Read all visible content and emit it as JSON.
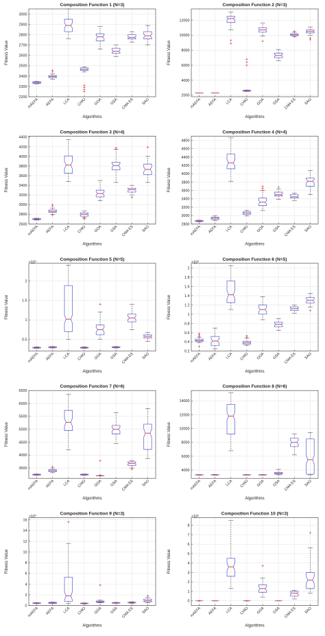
{
  "colors": {
    "box": "#6b6bd6",
    "median": "#e03030",
    "outlier": "#e03030",
    "whisker": "#555555",
    "grid": "#e6e6e6",
    "axis": "#333333"
  },
  "chart_data": [
    {
      "type": "box",
      "title": "Composition Function 1 (N=3)",
      "xlabel": "Algorithms",
      "ylabel": "Fitness Value",
      "categories": [
        "mAEFA",
        "AEFA",
        "LCA",
        "CHIO",
        "GOA",
        "GSA",
        "CMA ES",
        "SAO"
      ],
      "ylim": [
        2200,
        3050
      ],
      "yticks": [
        2200,
        2300,
        2400,
        2500,
        2600,
        2700,
        2800,
        2900,
        3000
      ],
      "multiplier": "",
      "boxes": [
        {
          "q1": 2330,
          "median": 2338,
          "q3": 2345,
          "lo": 2325,
          "hi": 2350,
          "outliers": []
        },
        {
          "q1": 2385,
          "median": 2395,
          "q3": 2405,
          "lo": 2370,
          "hi": 2420,
          "outliers": [
            2440,
            2455
          ]
        },
        {
          "q1": 2830,
          "median": 2890,
          "q3": 2950,
          "lo": 2760,
          "hi": 3050,
          "outliers": []
        },
        {
          "q1": 2455,
          "median": 2465,
          "q3": 2480,
          "lo": 2440,
          "hi": 2490,
          "outliers": [
            2250,
            2270,
            2290,
            2310
          ]
        },
        {
          "q1": 2740,
          "median": 2780,
          "q3": 2810,
          "lo": 2660,
          "hi": 2880,
          "outliers": []
        },
        {
          "q1": 2620,
          "median": 2640,
          "q3": 2670,
          "lo": 2590,
          "hi": 2700,
          "outliers": []
        },
        {
          "q1": 2760,
          "median": 2775,
          "q3": 2800,
          "lo": 2730,
          "hi": 2830,
          "outliers": []
        },
        {
          "q1": 2760,
          "median": 2790,
          "q3": 2830,
          "lo": 2700,
          "hi": 2890,
          "outliers": []
        }
      ]
    },
    {
      "type": "box",
      "title": "Composition Function 2 (N=3)",
      "xlabel": "Algorithms",
      "ylabel": "Fitness Value",
      "categories": [
        "mAEFA",
        "AEFA",
        "LCA",
        "CHIO",
        "GOA",
        "GSA",
        "CMA ES",
        "SAO"
      ],
      "ylim": [
        1800,
        13500
      ],
      "yticks": [
        2000,
        4000,
        6000,
        8000,
        10000,
        12000
      ],
      "multiplier": "",
      "boxes": [
        {
          "q1": 2290,
          "median": 2300,
          "q3": 2310,
          "lo": 2290,
          "hi": 2310,
          "outliers": []
        },
        {
          "q1": 2290,
          "median": 2300,
          "q3": 2310,
          "lo": 2290,
          "hi": 2310,
          "outliers": []
        },
        {
          "q1": 11700,
          "median": 12200,
          "q3": 12500,
          "lo": 10700,
          "hi": 13100,
          "outliers": [
            8900,
            9300
          ]
        },
        {
          "q1": 2550,
          "median": 2600,
          "q3": 2650,
          "lo": 2500,
          "hi": 2700,
          "outliers": [
            6000,
            6400,
            6800
          ]
        },
        {
          "q1": 10400,
          "median": 10700,
          "q3": 11000,
          "lo": 9900,
          "hi": 11600,
          "outliers": [
            9200
          ]
        },
        {
          "q1": 7000,
          "median": 7300,
          "q3": 7600,
          "lo": 6600,
          "hi": 8100,
          "outliers": []
        },
        {
          "q1": 9950,
          "median": 10050,
          "q3": 10200,
          "lo": 9800,
          "hi": 10400,
          "outliers": [
            9800,
            10500
          ]
        },
        {
          "q1": 10300,
          "median": 10500,
          "q3": 10700,
          "lo": 10000,
          "hi": 11100,
          "outliers": [
            9400,
            9600
          ]
        }
      ]
    },
    {
      "type": "box",
      "title": "Composition Function 3 (N=4)",
      "xlabel": "Algorithms",
      "ylabel": "Fitness Value",
      "categories": [
        "mAEFA",
        "AEFA",
        "LCA",
        "CHIO",
        "GOA",
        "GSA",
        "CMA ES",
        "SAO"
      ],
      "ylim": [
        2600,
        4420
      ],
      "yticks": [
        2600,
        2800,
        3000,
        3200,
        3400,
        3600,
        3800,
        4000,
        4200,
        4400
      ],
      "multiplier": "",
      "boxes": [
        {
          "q1": 2690,
          "median": 2700,
          "q3": 2710,
          "lo": 2680,
          "hi": 2720,
          "outliers": []
        },
        {
          "q1": 2840,
          "median": 2860,
          "q3": 2890,
          "lo": 2800,
          "hi": 2930,
          "outliers": [
            2780,
            2970,
            3000
          ]
        },
        {
          "q1": 3650,
          "median": 3820,
          "q3": 4010,
          "lo": 3480,
          "hi": 4350,
          "outliers": []
        },
        {
          "q1": 2760,
          "median": 2800,
          "q3": 2830,
          "lo": 2730,
          "hi": 2870,
          "outliers": [
            2700,
            2720
          ]
        },
        {
          "q1": 3160,
          "median": 3230,
          "q3": 3300,
          "lo": 3080,
          "hi": 3500,
          "outliers": []
        },
        {
          "q1": 3720,
          "median": 3810,
          "q3": 3880,
          "lo": 3460,
          "hi": 4150,
          "outliers": [
            4150,
            4180
          ]
        },
        {
          "q1": 3260,
          "median": 3310,
          "q3": 3340,
          "lo": 3200,
          "hi": 3400,
          "outliers": [
            3150
          ]
        },
        {
          "q1": 3620,
          "median": 3730,
          "q3": 3840,
          "lo": 3460,
          "hi": 4000,
          "outliers": [
            4190
          ]
        }
      ]
    },
    {
      "type": "box",
      "title": "Composition Function 4 (N=4)",
      "xlabel": "Algorithms",
      "ylabel": "Fitness Value",
      "categories": [
        "mAEFA",
        "AEFA",
        "LCA",
        "CHIO",
        "GOA",
        "GSA",
        "CMA ES",
        "SAO"
      ],
      "ylim": [
        2800,
        4900
      ],
      "yticks": [
        2800,
        3000,
        3200,
        3400,
        3600,
        3800,
        4000,
        4200,
        4400,
        4600,
        4800
      ],
      "multiplier": "",
      "boxes": [
        {
          "q1": 2860,
          "median": 2870,
          "q3": 2880,
          "lo": 2850,
          "hi": 2890,
          "outliers": []
        },
        {
          "q1": 2910,
          "median": 2940,
          "q3": 2960,
          "lo": 2880,
          "hi": 3000,
          "outliers": []
        },
        {
          "q1": 4120,
          "median": 4260,
          "q3": 4470,
          "lo": 3820,
          "hi": 4860,
          "outliers": []
        },
        {
          "q1": 3030,
          "median": 3060,
          "q3": 3090,
          "lo": 2990,
          "hi": 3130,
          "outliers": []
        },
        {
          "q1": 3240,
          "median": 3320,
          "q3": 3420,
          "lo": 3120,
          "hi": 3600,
          "outliers": [
            3600,
            3650,
            3700
          ]
        },
        {
          "q1": 3470,
          "median": 3500,
          "q3": 3560,
          "lo": 3390,
          "hi": 3640,
          "outliers": [
            3680
          ]
        },
        {
          "q1": 3420,
          "median": 3450,
          "q3": 3500,
          "lo": 3360,
          "hi": 3540,
          "outliers": []
        },
        {
          "q1": 3700,
          "median": 3820,
          "q3": 3900,
          "lo": 3500,
          "hi": 4080,
          "outliers": []
        }
      ]
    },
    {
      "type": "box",
      "title": "Composition Function 5 (N=5)",
      "xlabel": "Algorithms",
      "ylabel": "Fitness Value",
      "categories": [
        "mAEFA",
        "AEFA",
        "LCA",
        "CHIO",
        "GOA",
        "GSA",
        "CMA ES",
        "SAO"
      ],
      "ylim": [
        0.2,
        2.45
      ],
      "yticks": [
        0.5,
        1,
        1.5,
        2
      ],
      "multiplier": "×10⁴",
      "boxes": [
        {
          "q1": 0.28,
          "median": 0.29,
          "q3": 0.3,
          "lo": 0.27,
          "hi": 0.31,
          "outliers": []
        },
        {
          "q1": 0.29,
          "median": 0.3,
          "q3": 0.31,
          "lo": 0.28,
          "hi": 0.32,
          "outliers": []
        },
        {
          "q1": 0.7,
          "median": 1.02,
          "q3": 1.88,
          "lo": 0.5,
          "hi": 2.4,
          "outliers": []
        },
        {
          "q1": 0.28,
          "median": 0.29,
          "q3": 0.3,
          "lo": 0.27,
          "hi": 0.31,
          "outliers": []
        },
        {
          "q1": 0.62,
          "median": 0.75,
          "q3": 0.87,
          "lo": 0.5,
          "hi": 1.2,
          "outliers": [
            1.4
          ]
        },
        {
          "q1": 0.29,
          "median": 0.3,
          "q3": 0.31,
          "lo": 0.28,
          "hi": 0.32,
          "outliers": []
        },
        {
          "q1": 0.95,
          "median": 1.05,
          "q3": 1.15,
          "lo": 0.75,
          "hi": 1.4,
          "outliers": []
        },
        {
          "q1": 0.54,
          "median": 0.58,
          "q3": 0.62,
          "lo": 0.45,
          "hi": 0.68,
          "outliers": []
        }
      ]
    },
    {
      "type": "box",
      "title": "Composition Function 6 (N=5)",
      "xlabel": "Algorithms",
      "ylabel": "Fitness Value",
      "categories": [
        "mAEFA",
        "AEFA",
        "LCA",
        "CHIO",
        "GOA",
        "GSA",
        "CMA ES",
        "SAO"
      ],
      "ylim": [
        0.2,
        2.1
      ],
      "yticks": [
        0.2,
        0.4,
        0.6,
        0.8,
        1,
        1.2,
        1.4,
        1.6,
        1.8,
        2
      ],
      "multiplier": "×10⁴",
      "boxes": [
        {
          "q1": 0.41,
          "median": 0.43,
          "q3": 0.46,
          "lo": 0.38,
          "hi": 0.5,
          "outliers": [
            0.3,
            0.52,
            0.55,
            0.58
          ]
        },
        {
          "q1": 0.32,
          "median": 0.42,
          "q3": 0.52,
          "lo": 0.25,
          "hi": 0.7,
          "outliers": []
        },
        {
          "q1": 1.25,
          "median": 1.42,
          "q3": 1.72,
          "lo": 1.1,
          "hi": 2.05,
          "outliers": []
        },
        {
          "q1": 0.35,
          "median": 0.38,
          "q3": 0.41,
          "lo": 0.32,
          "hi": 0.48,
          "outliers": [
            0.5,
            0.53
          ]
        },
        {
          "q1": 1.0,
          "median": 1.1,
          "q3": 1.2,
          "lo": 0.88,
          "hi": 1.38,
          "outliers": []
        },
        {
          "q1": 0.73,
          "median": 0.78,
          "q3": 0.83,
          "lo": 0.65,
          "hi": 0.9,
          "outliers": []
        },
        {
          "q1": 1.08,
          "median": 1.12,
          "q3": 1.16,
          "lo": 1.02,
          "hi": 1.2,
          "outliers": []
        },
        {
          "q1": 1.24,
          "median": 1.3,
          "q3": 1.36,
          "lo": 1.15,
          "hi": 1.45,
          "outliers": [
            1.08
          ]
        }
      ]
    },
    {
      "type": "box",
      "title": "Composition Function 7 (N=6)",
      "xlabel": "Algorithms",
      "ylabel": "Fitness Value",
      "categories": [
        "mAEFA",
        "AEFA",
        "LCA",
        "CHIO",
        "GOA",
        "GSA",
        "CMA ES",
        "SAO"
      ],
      "ylim": [
        3100,
        6500
      ],
      "yticks": [
        3500,
        4000,
        4500,
        5000,
        5500,
        6000,
        6500
      ],
      "multiplier": "",
      "boxes": [
        {
          "q1": 3230,
          "median": 3245,
          "q3": 3260,
          "lo": 3215,
          "hi": 3270,
          "outliers": []
        },
        {
          "q1": 3360,
          "median": 3400,
          "q3": 3440,
          "lo": 3320,
          "hi": 3500,
          "outliers": [
            3550
          ]
        },
        {
          "q1": 4950,
          "median": 5270,
          "q3": 5730,
          "lo": 4200,
          "hi": 6350,
          "outliers": []
        },
        {
          "q1": 3230,
          "median": 3245,
          "q3": 3260,
          "lo": 3215,
          "hi": 3270,
          "outliers": []
        },
        {
          "q1": 3195,
          "median": 3200,
          "q3": 3205,
          "lo": 3190,
          "hi": 3210,
          "outliers": [
            3230,
            3780
          ]
        },
        {
          "q1": 4820,
          "median": 5000,
          "q3": 5150,
          "lo": 4450,
          "hi": 5650,
          "outliers": []
        },
        {
          "q1": 3600,
          "median": 3680,
          "q3": 3740,
          "lo": 3500,
          "hi": 3780,
          "outliers": [
            3450,
            3500
          ]
        },
        {
          "q1": 4220,
          "median": 4850,
          "q3": 5200,
          "lo": 3870,
          "hi": 5800,
          "outliers": []
        }
      ]
    },
    {
      "type": "box",
      "title": "Composition Function 8 (N=6)",
      "xlabel": "Algorithms",
      "ylabel": "Fitness Value",
      "categories": [
        "mAEFA",
        "AEFA",
        "LCA",
        "CHIO",
        "GOA",
        "GSA",
        "CMA ES",
        "SAO"
      ],
      "ylim": [
        2800,
        15500
      ],
      "yticks": [
        4000,
        6000,
        8000,
        10000,
        12000,
        14000
      ],
      "multiplier": "",
      "boxes": [
        {
          "q1": 3280,
          "median": 3300,
          "q3": 3320,
          "lo": 3250,
          "hi": 3350,
          "outliers": []
        },
        {
          "q1": 3280,
          "median": 3310,
          "q3": 3330,
          "lo": 3250,
          "hi": 3360,
          "outliers": []
        },
        {
          "q1": 9200,
          "median": 11800,
          "q3": 13500,
          "lo": 6800,
          "hi": 15200,
          "outliers": []
        },
        {
          "q1": 3280,
          "median": 3300,
          "q3": 3320,
          "lo": 3250,
          "hi": 3350,
          "outliers": []
        },
        {
          "q1": 3280,
          "median": 3300,
          "q3": 3320,
          "lo": 3250,
          "hi": 3350,
          "outliers": []
        },
        {
          "q1": 3420,
          "median": 3520,
          "q3": 3650,
          "lo": 3300,
          "hi": 4100,
          "outliers": []
        },
        {
          "q1": 7400,
          "median": 8000,
          "q3": 8600,
          "lo": 6200,
          "hi": 9200,
          "outliers": []
        },
        {
          "q1": 3400,
          "median": 5500,
          "q3": 8500,
          "lo": 3300,
          "hi": 9400,
          "outliers": []
        }
      ]
    },
    {
      "type": "box",
      "title": "Composition Function 9 (N=3)",
      "xlabel": "Algorithms",
      "ylabel": "Fitness Value",
      "categories": [
        "mAEFA",
        "AEFA",
        "LCA",
        "CHIO",
        "GOA",
        "GSA",
        "CMA ES",
        "SAO"
      ],
      "ylim": [
        0,
        16.4
      ],
      "yticks": [
        0,
        2,
        4,
        6,
        8,
        10,
        12,
        14,
        16
      ],
      "multiplier": "×10⁴",
      "boxes": [
        {
          "q1": 0.4,
          "median": 0.45,
          "q3": 0.5,
          "lo": 0.35,
          "hi": 0.55,
          "outliers": []
        },
        {
          "q1": 0.4,
          "median": 0.5,
          "q3": 0.6,
          "lo": 0.35,
          "hi": 0.65,
          "outliers": []
        },
        {
          "q1": 0.8,
          "median": 1.8,
          "q3": 5.3,
          "lo": 0.4,
          "hi": 11.6,
          "outliers": [
            15.6
          ]
        },
        {
          "q1": 0.35,
          "median": 0.4,
          "q3": 0.45,
          "lo": 0.3,
          "hi": 0.5,
          "outliers": []
        },
        {
          "q1": 0.6,
          "median": 0.7,
          "q3": 0.85,
          "lo": 0.5,
          "hi": 1.0,
          "outliers": [
            3.8
          ]
        },
        {
          "q1": 0.45,
          "median": 0.5,
          "q3": 0.55,
          "lo": 0.4,
          "hi": 0.6,
          "outliers": []
        },
        {
          "q1": 0.5,
          "median": 0.55,
          "q3": 0.6,
          "lo": 0.4,
          "hi": 0.7,
          "outliers": []
        },
        {
          "q1": 0.7,
          "median": 0.9,
          "q3": 1.2,
          "lo": 0.5,
          "hi": 1.5,
          "outliers": [
            1.8
          ]
        }
      ]
    },
    {
      "type": "box",
      "title": "Composition Function 10 (N=3)",
      "xlabel": "Algorithms",
      "ylabel": "Fitness Value",
      "categories": [
        "mAEFA",
        "AEFA",
        "LCA",
        "CHIO",
        "GOA",
        "GSA",
        "CMA ES",
        "SAO"
      ],
      "ylim": [
        -0.5,
        8.8
      ],
      "yticks": [
        0,
        1,
        2,
        3,
        4,
        5,
        6,
        7,
        8
      ],
      "multiplier": "×10⁵",
      "boxes": [
        {
          "q1": 0,
          "median": 0,
          "q3": 0,
          "lo": 0,
          "hi": 0,
          "outliers": [
            0
          ]
        },
        {
          "q1": 0,
          "median": 0,
          "q3": 0,
          "lo": 0,
          "hi": 0,
          "outliers": []
        },
        {
          "q1": 2.6,
          "median": 3.6,
          "q3": 4.5,
          "lo": 1.3,
          "hi": 8.5,
          "outliers": []
        },
        {
          "q1": 0,
          "median": 0,
          "q3": 0,
          "lo": 0,
          "hi": 0,
          "outliers": [
            0
          ]
        },
        {
          "q1": 0.9,
          "median": 1.3,
          "q3": 1.7,
          "lo": 0.4,
          "hi": 2.4,
          "outliers": [
            3.7
          ]
        },
        {
          "q1": 0,
          "median": 0,
          "q3": 0,
          "lo": 0,
          "hi": 0,
          "outliers": []
        },
        {
          "q1": 0.5,
          "median": 0.8,
          "q3": 1.0,
          "lo": 0.2,
          "hi": 1.1,
          "outliers": []
        },
        {
          "q1": 1.3,
          "median": 2.2,
          "q3": 3.0,
          "lo": 0.8,
          "hi": 5.6,
          "outliers": [
            7.2
          ]
        }
      ]
    }
  ]
}
